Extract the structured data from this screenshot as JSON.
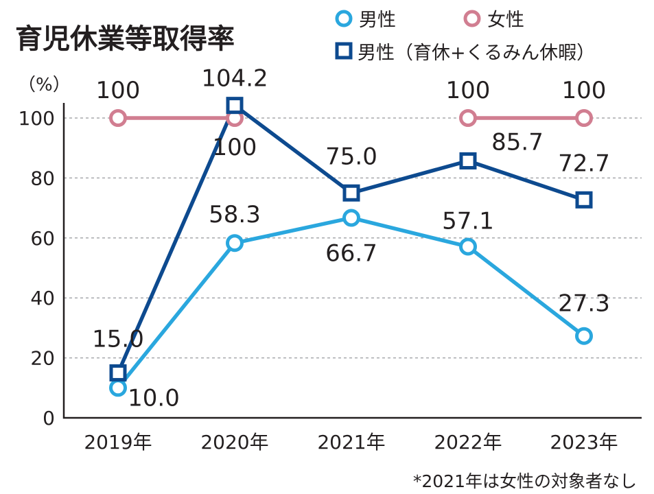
{
  "chart_data": {
    "type": "line",
    "title": "育児休業等取得率",
    "ylabel": "（%）",
    "ylim": [
      0,
      100
    ],
    "yticks": [
      "0",
      "20",
      "40",
      "60",
      "80",
      "100"
    ],
    "categories": [
      "2019年",
      "2020年",
      "2021年",
      "2022年",
      "2023年"
    ],
    "grid": true,
    "legend_position": "top-right",
    "series": [
      {
        "name": "男性",
        "marker": "circle",
        "color": "#2aa7de",
        "values": [
          10.0,
          58.3,
          66.7,
          57.1,
          27.3
        ],
        "labels": [
          "10.0",
          "58.3",
          "66.7",
          "57.1",
          "27.3"
        ]
      },
      {
        "name": "女性",
        "marker": "circle",
        "color": "#d17e91",
        "values": [
          100,
          100,
          null,
          100,
          100
        ],
        "labels": [
          "100",
          "100",
          "",
          "100",
          "100"
        ]
      },
      {
        "name": "男性（育休+くるみん休暇）",
        "marker": "square",
        "color": "#0d4a8f",
        "values": [
          15.0,
          104.2,
          75.0,
          85.7,
          72.7
        ],
        "labels": [
          "15.0",
          "104.2",
          "75.0",
          "85.7",
          "72.7"
        ]
      }
    ],
    "note": "*2021年は女性の対象者なし"
  }
}
